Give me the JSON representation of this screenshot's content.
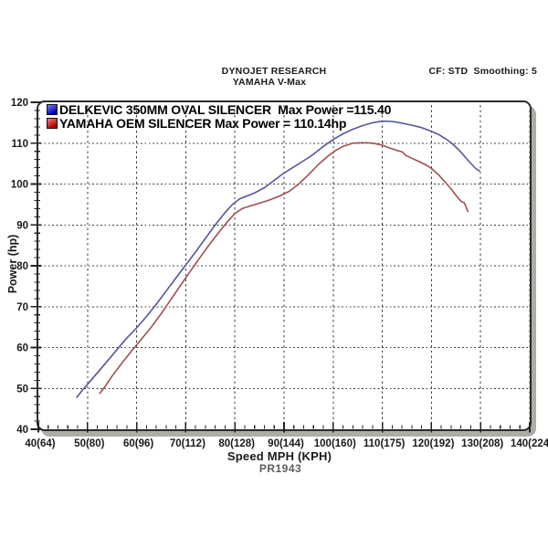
{
  "header": {
    "company": "DYNOJET RESEARCH",
    "vehicle": "YAMAHA V-Max",
    "settings": "CF: STD  Smoothing: 5"
  },
  "footer": {
    "run_id": "PR1943"
  },
  "legend": [
    {
      "label": "DELKEVIC 350MM OVAL SILENCER  Max Power =115.40",
      "swatch_light": "#7d7dff",
      "swatch_dark": "#0000b0"
    },
    {
      "label": "YAMAHA OEM SILENCER Max Power = 110.14hp",
      "swatch_light": "#ff7d7d",
      "swatch_dark": "#b00000"
    }
  ],
  "chart_data": {
    "type": "line",
    "title": "DYNOJET RESEARCH",
    "subtitle": "YAMAHA V-Max",
    "annotation": "CF: STD  Smoothing: 5",
    "footer": "PR1943",
    "xlabel": "Speed MPH (KPH)",
    "ylabel": "Power (hp)",
    "xlim": [
      40,
      140
    ],
    "ylim": [
      40,
      120
    ],
    "grid": "dashed",
    "legend_position": "top-left",
    "x_ticks": [
      {
        "v": 40,
        "label": "40(64)"
      },
      {
        "v": 50,
        "label": "50(80)"
      },
      {
        "v": 60,
        "label": "60(96)"
      },
      {
        "v": 70,
        "label": "70(112)"
      },
      {
        "v": 80,
        "label": "80(128)"
      },
      {
        "v": 90,
        "label": "90(144)"
      },
      {
        "v": 100,
        "label": "100(160)"
      },
      {
        "v": 110,
        "label": "110(175)"
      },
      {
        "v": 120,
        "label": "120(192)"
      },
      {
        "v": 130,
        "label": "130(208)"
      },
      {
        "v": 140,
        "label": "140(224)"
      }
    ],
    "y_ticks": [
      {
        "v": 40,
        "label": "40"
      },
      {
        "v": 50,
        "label": "50"
      },
      {
        "v": 60,
        "label": "60"
      },
      {
        "v": 70,
        "label": "70"
      },
      {
        "v": 80,
        "label": "80"
      },
      {
        "v": 90,
        "label": "90"
      },
      {
        "v": 100,
        "label": "100"
      },
      {
        "v": 110,
        "label": "110"
      },
      {
        "v": 120,
        "label": "120"
      }
    ],
    "x_minor_step": 2,
    "y_minor_step": 2,
    "series": [
      {
        "name": "DELKEVIC 350MM OVAL SILENCER",
        "max_power_hp": 115.4,
        "color": "#55559b",
        "points": [
          [
            47.8,
            47.8
          ],
          [
            49,
            49.6
          ],
          [
            50,
            51
          ],
          [
            52,
            53.8
          ],
          [
            54,
            56.6
          ],
          [
            56,
            59.5
          ],
          [
            58,
            62.3
          ],
          [
            60,
            64.8
          ],
          [
            62,
            67.6
          ],
          [
            64,
            70.6
          ],
          [
            66,
            73.8
          ],
          [
            68,
            77
          ],
          [
            70,
            80.2
          ],
          [
            72,
            83.4
          ],
          [
            74,
            86.7
          ],
          [
            76,
            90
          ],
          [
            78,
            93
          ],
          [
            79.5,
            95
          ],
          [
            81,
            96.4
          ],
          [
            82.5,
            97.1
          ],
          [
            84,
            97.8
          ],
          [
            86,
            99.1
          ],
          [
            88,
            100.9
          ],
          [
            90,
            102.7
          ],
          [
            92,
            104.2
          ],
          [
            94,
            105.7
          ],
          [
            96,
            107.3
          ],
          [
            98,
            109.2
          ],
          [
            100,
            110.9
          ],
          [
            102,
            112.3
          ],
          [
            104,
            113.4
          ],
          [
            106,
            114.3
          ],
          [
            108,
            115
          ],
          [
            110,
            115.4
          ],
          [
            112,
            115.3
          ],
          [
            114,
            114.9
          ],
          [
            116,
            114.4
          ],
          [
            118,
            113.8
          ],
          [
            120,
            112.9
          ],
          [
            121.5,
            112.1
          ],
          [
            123,
            111
          ],
          [
            124.5,
            109.6
          ],
          [
            126,
            107.8
          ],
          [
            127.5,
            105.7
          ],
          [
            129,
            103.8
          ],
          [
            129.8,
            103.2
          ]
        ]
      },
      {
        "name": "YAMAHA OEM SILENCER",
        "max_power_hp": 110.14,
        "color": "#a04f4f",
        "points": [
          [
            52.5,
            48.8
          ],
          [
            53.5,
            50.3
          ],
          [
            55,
            53
          ],
          [
            57,
            56.2
          ],
          [
            59,
            59.2
          ],
          [
            61,
            62.1
          ],
          [
            63,
            65
          ],
          [
            65,
            68.3
          ],
          [
            67,
            71.8
          ],
          [
            69,
            75.3
          ],
          [
            71,
            78.8
          ],
          [
            73,
            82.2
          ],
          [
            75,
            85.5
          ],
          [
            77,
            88.6
          ],
          [
            78.5,
            90.8
          ],
          [
            80,
            92.8
          ],
          [
            81.5,
            94
          ],
          [
            83,
            94.6
          ],
          [
            85,
            95.3
          ],
          [
            87,
            96.1
          ],
          [
            89,
            97
          ],
          [
            91,
            98.2
          ],
          [
            93,
            100
          ],
          [
            95,
            102.3
          ],
          [
            97,
            104.8
          ],
          [
            99,
            106.9
          ],
          [
            100.5,
            108.2
          ],
          [
            102,
            109.2
          ],
          [
            104,
            110
          ],
          [
            105.5,
            110.1
          ],
          [
            107,
            110.1
          ],
          [
            108.5,
            109.9
          ],
          [
            110,
            109.5
          ],
          [
            111.5,
            108.8
          ],
          [
            113,
            108.2
          ],
          [
            114,
            107.9
          ],
          [
            114.8,
            107
          ],
          [
            116,
            106.3
          ],
          [
            117.5,
            105.5
          ],
          [
            119,
            104.6
          ],
          [
            120,
            103.8
          ],
          [
            121.5,
            102.2
          ],
          [
            123,
            100.2
          ],
          [
            124,
            98.8
          ],
          [
            125,
            97.2
          ],
          [
            126,
            95.8
          ],
          [
            126.7,
            95.4
          ],
          [
            127.4,
            93.3
          ]
        ]
      }
    ]
  }
}
